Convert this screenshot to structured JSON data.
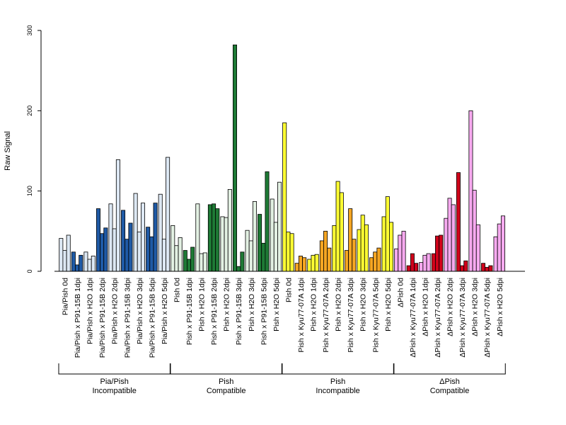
{
  "chart_data": {
    "type": "bar",
    "ylabel": "Raw Signal",
    "xlabel": "",
    "title": "",
    "ylim": [
      0,
      300
    ],
    "yticks": [
      0,
      100,
      200,
      300
    ],
    "grid": false,
    "categories": [
      "Pia/Pish 0d",
      "Pia/Pish x P91-15B 1dpi",
      "Pia/Pish x H2O 1dpi",
      "Pia/Pish x P91-15B 2dpi",
      "Pia/Pish x H2O 2dpi",
      "Pia/Pish x P91-15B 3dpi",
      "Pia/Pish x H2O 3dpi",
      "Pia/Pish x P91-15B 5dpi",
      "Pia/Pish x H2O 5dpi",
      "Pish 0d",
      "Pish x P91-15B 1dpi",
      "Pish x H2O 1dpi",
      "Pish x P91-15B 2dpi",
      "Pish x H2O 2dpi",
      "Pish x P91-15B 3dpi",
      "Pish x H2O 3dpi",
      "Pish x P91-15B 5dpi",
      "Pish x H2O 5dpi",
      "Pish 0d",
      "Pish x Kyu77-07A 1dpi",
      "Pish x H2O 1dpi",
      "Pish x Kyu77-07A 2dpi",
      "Pish x H2O 2dpi",
      "Pish x Kyu77-07A 3dpi",
      "Pish x H2O 3dpi",
      "Pish x Kyu77-07A 5dpi",
      "Pish x H2O 5dpi",
      "ΔPish 0d",
      "ΔPish x Kyu77-07A 1dpi",
      "ΔPish x H2O 1dpi",
      "ΔPish x Kyu77-07A 2dpi",
      "ΔPish x H2O 2dpi",
      "ΔPish x Kyu77-07A 3dpi",
      "ΔPish x H2O 3dpi",
      "ΔPish x Kyu77-07A 5dpi",
      "ΔPish x H2O 5dpi"
    ],
    "values": [
      [
        41,
        26,
        45
      ],
      [
        24,
        8,
        20
      ],
      [
        24,
        15,
        19
      ],
      [
        78,
        47,
        54
      ],
      [
        84,
        53,
        139
      ],
      [
        76,
        40,
        60
      ],
      [
        97,
        49,
        85
      ],
      [
        55,
        43,
        85
      ],
      [
        96,
        40,
        142
      ],
      [
        57,
        32,
        42
      ],
      [
        26,
        15,
        30
      ],
      [
        84,
        22,
        23
      ],
      [
        83,
        84,
        78
      ],
      [
        68,
        67,
        102
      ],
      [
        282,
        6,
        24
      ],
      [
        51,
        38,
        87
      ],
      [
        71,
        35,
        124
      ],
      [
        90,
        61,
        111
      ],
      [
        185,
        49,
        47
      ],
      [
        10,
        19,
        17
      ],
      [
        15,
        20,
        21
      ],
      [
        38,
        50,
        29
      ],
      [
        57,
        112,
        98
      ],
      [
        26,
        78,
        40
      ],
      [
        52,
        70,
        58
      ],
      [
        17,
        24,
        29
      ],
      [
        68,
        93,
        61
      ],
      [
        28,
        45,
        50
      ],
      [
        7,
        22,
        10
      ],
      [
        11,
        20,
        22
      ],
      [
        22,
        44,
        45
      ],
      [
        66,
        91,
        83
      ],
      [
        123,
        7,
        13
      ],
      [
        200,
        101,
        58
      ],
      [
        10,
        5,
        7
      ],
      [
        43,
        59,
        69
      ]
    ],
    "bar_colors": [
      "#dde8f4",
      "#1f5aa6",
      "#dde8f4",
      "#1f5aa6",
      "#dde8f4",
      "#1f5aa6",
      "#dde8f4",
      "#1f5aa6",
      "#dde8f4",
      "#e3f1e3",
      "#1e7a35",
      "#e3f1e3",
      "#1e7a35",
      "#e3f1e3",
      "#1e7a35",
      "#e3f1e3",
      "#1e7a35",
      "#e3f1e3",
      "#ffff33",
      "#f5a623",
      "#ffff33",
      "#f5a623",
      "#ffff33",
      "#f5a623",
      "#ffff33",
      "#f5a623",
      "#ffff33",
      "#f7aaf0",
      "#d0021b",
      "#f7aaf0",
      "#d0021b",
      "#f7aaf0",
      "#d0021b",
      "#f7aaf0",
      "#d0021b",
      "#f7aaf0"
    ],
    "groups": [
      {
        "line1": "Pia/Pish",
        "line2": "Incompatible",
        "start": 0,
        "end": 8
      },
      {
        "line1": "Pish",
        "line2": "Compatible",
        "start": 9,
        "end": 17
      },
      {
        "line1": "Pish",
        "line2": "Incompatible",
        "start": 18,
        "end": 26
      },
      {
        "line1": "ΔPish",
        "line2": "Compatible",
        "start": 27,
        "end": 35
      }
    ]
  }
}
